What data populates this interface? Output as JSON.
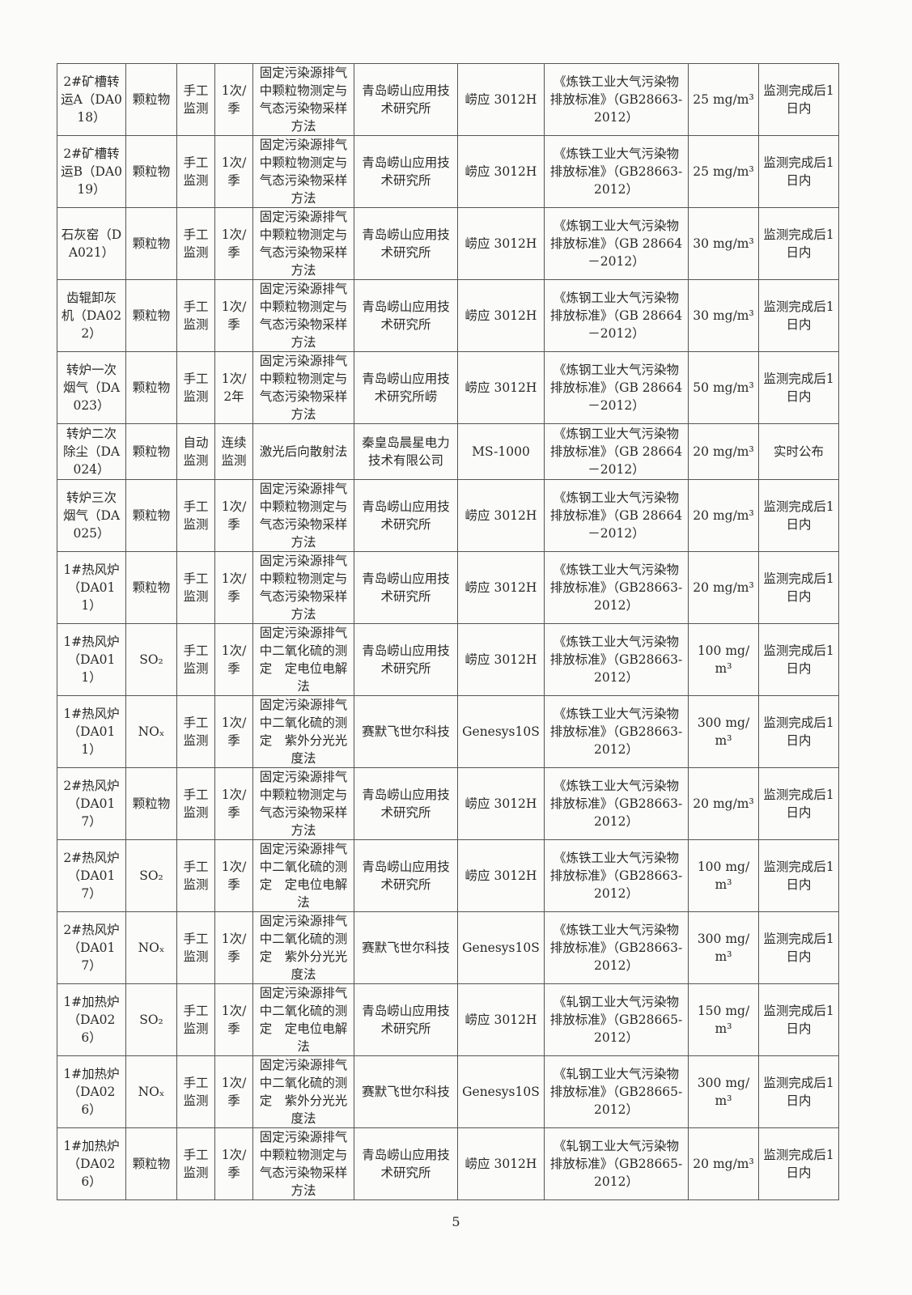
{
  "table": {
    "rows": [
      [
        "2#矿槽转运A（DA018）",
        "颗粒物",
        "手工监测",
        "1次/季",
        "固定污染源排气中颗粒物测定与气态污染物采样方法",
        "青岛崂山应用技术研究所",
        "崂应 3012H",
        "《炼铁工业大气污染物排放标准》（GB28663-2012）",
        "25 mg/m³",
        "监测完成后1日内"
      ],
      [
        "2#矿槽转运B（DA019）",
        "颗粒物",
        "手工监测",
        "1次/季",
        "固定污染源排气中颗粒物测定与气态污染物采样方法",
        "青岛崂山应用技术研究所",
        "崂应 3012H",
        "《炼铁工业大气污染物排放标准》（GB28663-2012）",
        "25 mg/m³",
        "监测完成后1日内"
      ],
      [
        "石灰窑（DA021）",
        "颗粒物",
        "手工监测",
        "1次/季",
        "固定污染源排气中颗粒物测定与气态污染物采样方法",
        "青岛崂山应用技术研究所",
        "崂应 3012H",
        "《炼钢工业大气污染物排放标准》（GB 28664－2012）",
        "30 mg/m³",
        "监测完成后1日内"
      ],
      [
        "齿辊卸灰机（DA022）",
        "颗粒物",
        "手工监测",
        "1次/季",
        "固定污染源排气中颗粒物测定与气态污染物采样方法",
        "青岛崂山应用技术研究所",
        "崂应 3012H",
        "《炼钢工业大气污染物排放标准》（GB 28664－2012）",
        "30 mg/m³",
        "监测完成后1日内"
      ],
      [
        "转炉一次烟气（DA023）",
        "颗粒物",
        "手工监测",
        "1次/2年",
        "固定污染源排气中颗粒物测定与气态污染物采样方法",
        "青岛崂山应用技术研究所崂",
        "崂应 3012H",
        "《炼钢工业大气污染物排放标准》（GB 28664－2012）",
        "50 mg/m³",
        "监测完成后1日内"
      ],
      [
        "转炉二次除尘（DA024）",
        "颗粒物",
        "自动监测",
        "连续监测",
        "激光后向散射法",
        "秦皇岛晨星电力技术有限公司",
        "MS-1000",
        "《炼钢工业大气污染物排放标准》（GB 28664－2012）",
        "20 mg/m³",
        "实时公布"
      ],
      [
        "转炉三次烟气（DA025）",
        "颗粒物",
        "手工监测",
        "1次/季",
        "固定污染源排气中颗粒物测定与气态污染物采样方法",
        "青岛崂山应用技术研究所",
        "崂应 3012H",
        "《炼钢工业大气污染物排放标准》（GB 28664－2012）",
        "20 mg/m³",
        "监测完成后1日内"
      ],
      [
        "1#热风炉（DA011）",
        "颗粒物",
        "手工监测",
        "1次/季",
        "固定污染源排气中颗粒物测定与气态污染物采样方法",
        "青岛崂山应用技术研究所",
        "崂应 3012H",
        "《炼铁工业大气污染物排放标准》（GB28663-2012）",
        "20 mg/m³",
        "监测完成后1日内"
      ],
      [
        "1#热风炉（DA011）",
        "SO₂",
        "手工监测",
        "1次/季",
        "固定污染源排气中二氧化硫的测定　定电位电解法",
        "青岛崂山应用技术研究所",
        "崂应 3012H",
        "《炼铁工业大气污染物排放标准》（GB28663-2012）",
        "100 mg/m³",
        "监测完成后1日内"
      ],
      [
        "1#热风炉（DA011）",
        "NOₓ",
        "手工监测",
        "1次/季",
        "固定污染源排气中二氧化硫的测定　紫外分光光度法",
        "赛默飞世尔科技",
        "Genesys10S",
        "《炼铁工业大气污染物排放标准》（GB28663-2012）",
        "300 mg/m³",
        "监测完成后1日内"
      ],
      [
        "2#热风炉（DA017）",
        "颗粒物",
        "手工监测",
        "1次/季",
        "固定污染源排气中颗粒物测定与气态污染物采样方法",
        "青岛崂山应用技术研究所",
        "崂应 3012H",
        "《炼铁工业大气污染物排放标准》（GB28663-2012）",
        "20 mg/m³",
        "监测完成后1日内"
      ],
      [
        "2#热风炉（DA017）",
        "SO₂",
        "手工监测",
        "1次/季",
        "固定污染源排气中二氧化硫的测定　定电位电解法",
        "青岛崂山应用技术研究所",
        "崂应 3012H",
        "《炼铁工业大气污染物排放标准》（GB28663-2012）",
        "100 mg/m³",
        "监测完成后1日内"
      ],
      [
        "2#热风炉（DA017）",
        "NOₓ",
        "手工监测",
        "1次/季",
        "固定污染源排气中二氧化硫的测定　紫外分光光度法",
        "赛默飞世尔科技",
        "Genesys10S",
        "《炼铁工业大气污染物排放标准》（GB28663-2012）",
        "300 mg/m³",
        "监测完成后1日内"
      ],
      [
        "1#加热炉（DA026）",
        "SO₂",
        "手工监测",
        "1次/季",
        "固定污染源排气中二氧化硫的测定　定电位电解法",
        "青岛崂山应用技术研究所",
        "崂应 3012H",
        "《轧钢工业大气污染物排放标准》（GB28665-2012）",
        "150 mg/m³",
        "监测完成后1日内"
      ],
      [
        "1#加热炉（DA026）",
        "NOₓ",
        "手工监测",
        "1次/季",
        "固定污染源排气中二氧化硫的测定　紫外分光光度法",
        "赛默飞世尔科技",
        "Genesys10S",
        "《轧钢工业大气污染物排放标准》（GB28665-2012）",
        "300 mg/m³",
        "监测完成后1日内"
      ],
      [
        "1#加热炉（DA026）",
        "颗粒物",
        "手工监测",
        "1次/季",
        "固定污染源排气中颗粒物测定与气态污染物采样方法",
        "青岛崂山应用技术研究所",
        "崂应 3012H",
        "《轧钢工业大气污染物排放标准》（GB28665-2012）",
        "20 mg/m³",
        "监测完成后1日内"
      ]
    ]
  },
  "page_number": "5"
}
